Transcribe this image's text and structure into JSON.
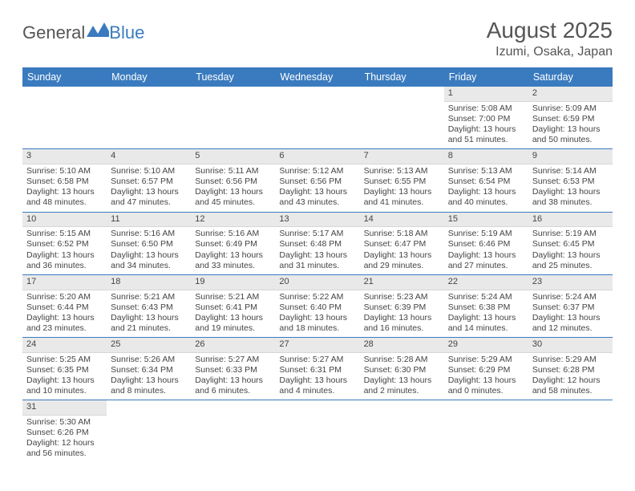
{
  "logo": {
    "text1": "General",
    "text2": "Blue"
  },
  "title": "August 2025",
  "location": "Izumi, Osaka, Japan",
  "colors": {
    "header_bg": "#3a7bbf",
    "header_text": "#ffffff",
    "daynum_bg": "#e9e9e9",
    "border": "#3a7bbf",
    "text": "#444444"
  },
  "day_names": [
    "Sunday",
    "Monday",
    "Tuesday",
    "Wednesday",
    "Thursday",
    "Friday",
    "Saturday"
  ],
  "weeks": [
    [
      null,
      null,
      null,
      null,
      null,
      {
        "n": "1",
        "sr": "Sunrise: 5:08 AM",
        "ss": "Sunset: 7:00 PM",
        "dl": "Daylight: 13 hours and 51 minutes."
      },
      {
        "n": "2",
        "sr": "Sunrise: 5:09 AM",
        "ss": "Sunset: 6:59 PM",
        "dl": "Daylight: 13 hours and 50 minutes."
      }
    ],
    [
      {
        "n": "3",
        "sr": "Sunrise: 5:10 AM",
        "ss": "Sunset: 6:58 PM",
        "dl": "Daylight: 13 hours and 48 minutes."
      },
      {
        "n": "4",
        "sr": "Sunrise: 5:10 AM",
        "ss": "Sunset: 6:57 PM",
        "dl": "Daylight: 13 hours and 47 minutes."
      },
      {
        "n": "5",
        "sr": "Sunrise: 5:11 AM",
        "ss": "Sunset: 6:56 PM",
        "dl": "Daylight: 13 hours and 45 minutes."
      },
      {
        "n": "6",
        "sr": "Sunrise: 5:12 AM",
        "ss": "Sunset: 6:56 PM",
        "dl": "Daylight: 13 hours and 43 minutes."
      },
      {
        "n": "7",
        "sr": "Sunrise: 5:13 AM",
        "ss": "Sunset: 6:55 PM",
        "dl": "Daylight: 13 hours and 41 minutes."
      },
      {
        "n": "8",
        "sr": "Sunrise: 5:13 AM",
        "ss": "Sunset: 6:54 PM",
        "dl": "Daylight: 13 hours and 40 minutes."
      },
      {
        "n": "9",
        "sr": "Sunrise: 5:14 AM",
        "ss": "Sunset: 6:53 PM",
        "dl": "Daylight: 13 hours and 38 minutes."
      }
    ],
    [
      {
        "n": "10",
        "sr": "Sunrise: 5:15 AM",
        "ss": "Sunset: 6:52 PM",
        "dl": "Daylight: 13 hours and 36 minutes."
      },
      {
        "n": "11",
        "sr": "Sunrise: 5:16 AM",
        "ss": "Sunset: 6:50 PM",
        "dl": "Daylight: 13 hours and 34 minutes."
      },
      {
        "n": "12",
        "sr": "Sunrise: 5:16 AM",
        "ss": "Sunset: 6:49 PM",
        "dl": "Daylight: 13 hours and 33 minutes."
      },
      {
        "n": "13",
        "sr": "Sunrise: 5:17 AM",
        "ss": "Sunset: 6:48 PM",
        "dl": "Daylight: 13 hours and 31 minutes."
      },
      {
        "n": "14",
        "sr": "Sunrise: 5:18 AM",
        "ss": "Sunset: 6:47 PM",
        "dl": "Daylight: 13 hours and 29 minutes."
      },
      {
        "n": "15",
        "sr": "Sunrise: 5:19 AM",
        "ss": "Sunset: 6:46 PM",
        "dl": "Daylight: 13 hours and 27 minutes."
      },
      {
        "n": "16",
        "sr": "Sunrise: 5:19 AM",
        "ss": "Sunset: 6:45 PM",
        "dl": "Daylight: 13 hours and 25 minutes."
      }
    ],
    [
      {
        "n": "17",
        "sr": "Sunrise: 5:20 AM",
        "ss": "Sunset: 6:44 PM",
        "dl": "Daylight: 13 hours and 23 minutes."
      },
      {
        "n": "18",
        "sr": "Sunrise: 5:21 AM",
        "ss": "Sunset: 6:43 PM",
        "dl": "Daylight: 13 hours and 21 minutes."
      },
      {
        "n": "19",
        "sr": "Sunrise: 5:21 AM",
        "ss": "Sunset: 6:41 PM",
        "dl": "Daylight: 13 hours and 19 minutes."
      },
      {
        "n": "20",
        "sr": "Sunrise: 5:22 AM",
        "ss": "Sunset: 6:40 PM",
        "dl": "Daylight: 13 hours and 18 minutes."
      },
      {
        "n": "21",
        "sr": "Sunrise: 5:23 AM",
        "ss": "Sunset: 6:39 PM",
        "dl": "Daylight: 13 hours and 16 minutes."
      },
      {
        "n": "22",
        "sr": "Sunrise: 5:24 AM",
        "ss": "Sunset: 6:38 PM",
        "dl": "Daylight: 13 hours and 14 minutes."
      },
      {
        "n": "23",
        "sr": "Sunrise: 5:24 AM",
        "ss": "Sunset: 6:37 PM",
        "dl": "Daylight: 13 hours and 12 minutes."
      }
    ],
    [
      {
        "n": "24",
        "sr": "Sunrise: 5:25 AM",
        "ss": "Sunset: 6:35 PM",
        "dl": "Daylight: 13 hours and 10 minutes."
      },
      {
        "n": "25",
        "sr": "Sunrise: 5:26 AM",
        "ss": "Sunset: 6:34 PM",
        "dl": "Daylight: 13 hours and 8 minutes."
      },
      {
        "n": "26",
        "sr": "Sunrise: 5:27 AM",
        "ss": "Sunset: 6:33 PM",
        "dl": "Daylight: 13 hours and 6 minutes."
      },
      {
        "n": "27",
        "sr": "Sunrise: 5:27 AM",
        "ss": "Sunset: 6:31 PM",
        "dl": "Daylight: 13 hours and 4 minutes."
      },
      {
        "n": "28",
        "sr": "Sunrise: 5:28 AM",
        "ss": "Sunset: 6:30 PM",
        "dl": "Daylight: 13 hours and 2 minutes."
      },
      {
        "n": "29",
        "sr": "Sunrise: 5:29 AM",
        "ss": "Sunset: 6:29 PM",
        "dl": "Daylight: 13 hours and 0 minutes."
      },
      {
        "n": "30",
        "sr": "Sunrise: 5:29 AM",
        "ss": "Sunset: 6:28 PM",
        "dl": "Daylight: 12 hours and 58 minutes."
      }
    ],
    [
      {
        "n": "31",
        "sr": "Sunrise: 5:30 AM",
        "ss": "Sunset: 6:26 PM",
        "dl": "Daylight: 12 hours and 56 minutes."
      },
      null,
      null,
      null,
      null,
      null,
      null
    ]
  ]
}
